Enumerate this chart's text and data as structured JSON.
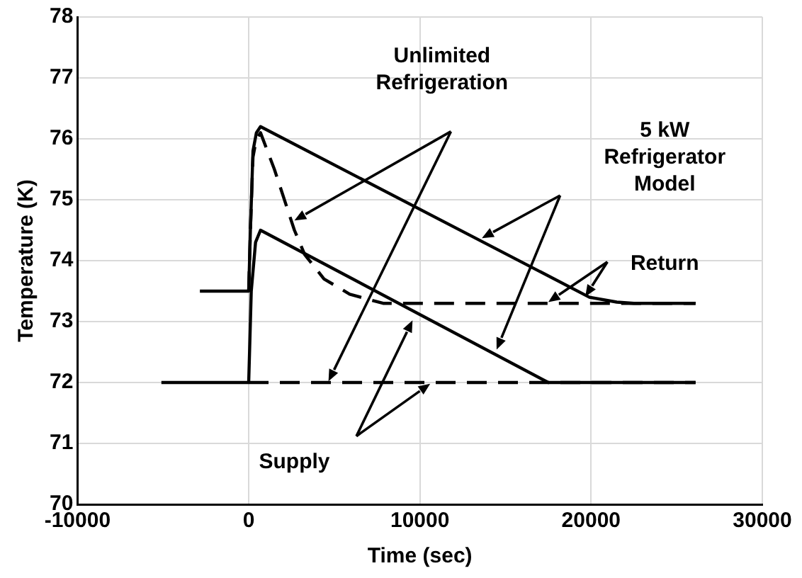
{
  "chart_data": {
    "type": "line",
    "xlabel": "Time (sec)",
    "ylabel": "Temperature (K)",
    "xlim": [
      -10000,
      30000
    ],
    "xticks": [
      -10000,
      0,
      10000,
      20000,
      30000
    ],
    "ylim": [
      70,
      78
    ],
    "yticks": [
      70,
      71,
      72,
      73,
      74,
      75,
      76,
      77,
      78
    ],
    "grid": true,
    "legend": false,
    "marker": "none",
    "series": [
      {
        "color": "#000000",
        "line_style": "solid",
        "x": [
          -2850,
          0,
          100,
          250,
          450,
          690,
          19900,
          21500,
          22500,
          26100
        ],
        "values": [
          73.5,
          73.5,
          74.5,
          75.8,
          76.1,
          76.2,
          73.4,
          73.32,
          73.3,
          73.3
        ]
      },
      {
        "color": "#000000",
        "line_style": "dashed",
        "x": [
          0,
          100,
          250,
          450,
          690,
          1500,
          2670,
          3270,
          4400,
          5900,
          7850,
          26100
        ],
        "values": [
          73.5,
          74.5,
          75.7,
          76.0,
          76.1,
          75.5,
          74.5,
          74.1,
          73.7,
          73.45,
          73.3,
          73.3
        ]
      },
      {
        "color": "#000000",
        "line_style": "solid",
        "x": [
          -5100,
          0,
          150,
          400,
          690,
          17500,
          26100
        ],
        "values": [
          72,
          72,
          73.5,
          74.3,
          74.5,
          72,
          72
        ]
      },
      {
        "color": "#000000",
        "line_style": "dashed",
        "x": [
          0,
          26100
        ],
        "values": [
          72,
          72
        ]
      }
    ],
    "annotations": [
      "Unlimited Refrigeration",
      "5 kW Refrigerator Model",
      "Return",
      "Supply"
    ]
  }
}
